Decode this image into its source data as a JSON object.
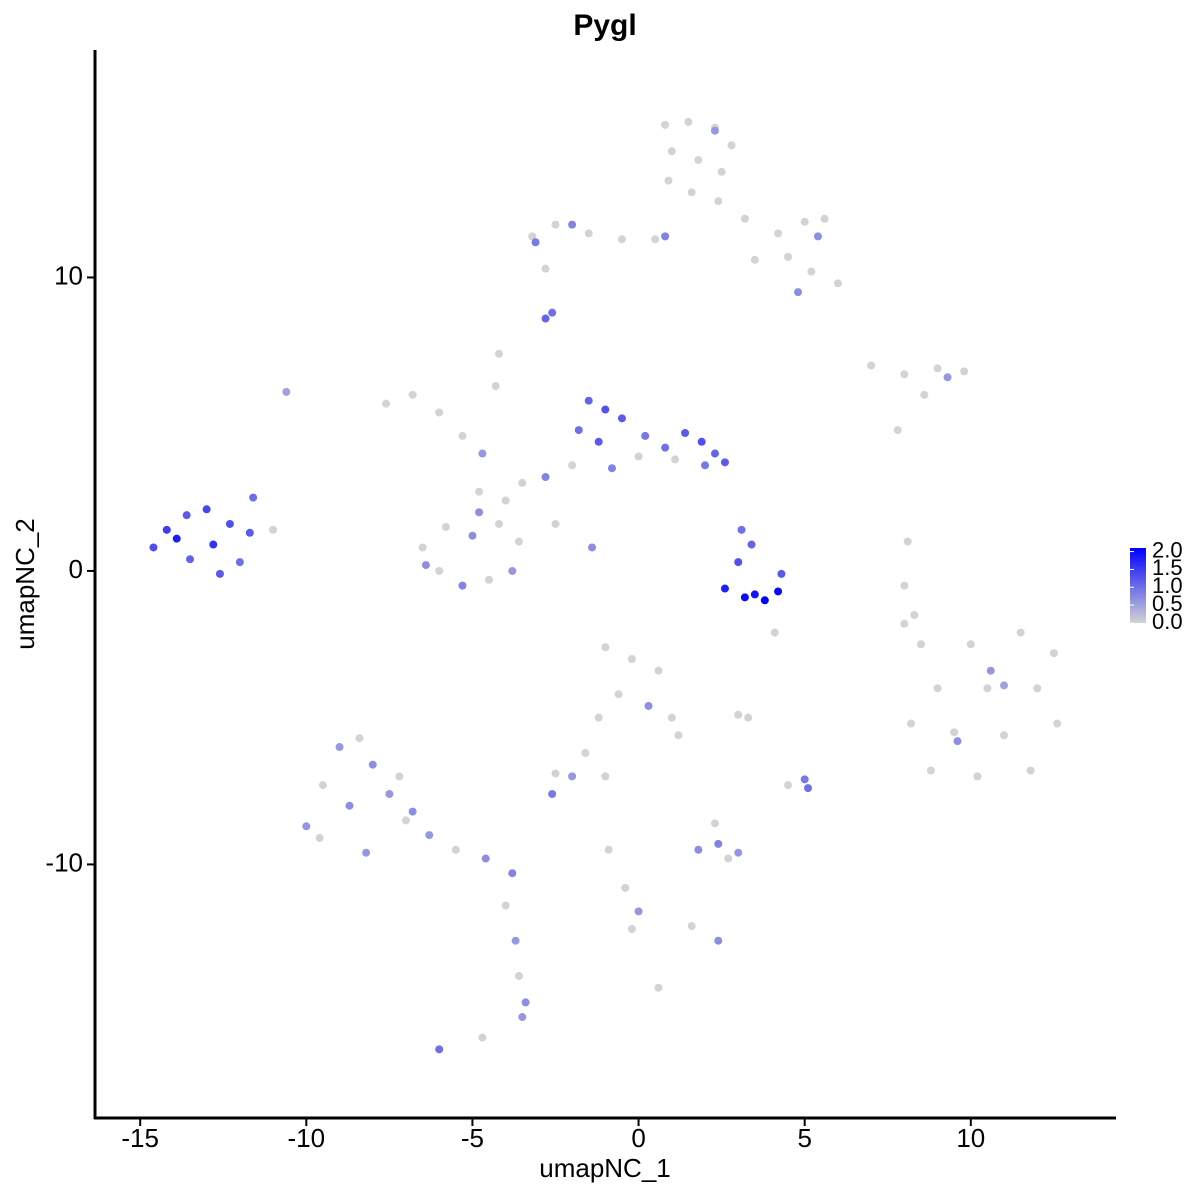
{
  "chart_data": {
    "type": "scatter",
    "title": "Pygl",
    "x_label": "umapNC_1",
    "y_label": "umapNC_2",
    "xlim": [
      -16.36,
      14.37
    ],
    "ylim": [
      -18.64,
      17.75
    ],
    "xticks": [
      -15,
      -10,
      -5,
      0,
      5,
      10
    ],
    "yticks": [
      -10,
      0,
      10
    ],
    "color_low": "#d3d3d3",
    "color_high": "#0000ff",
    "color_lim": [
      0,
      2.1
    ],
    "color_ticks": [
      {
        "value": 0,
        "label": "0.0"
      },
      {
        "value": 0.5,
        "label": "0.5"
      },
      {
        "value": 1,
        "label": "1.0"
      },
      {
        "value": 1.5,
        "label": "1.5"
      },
      {
        "value": 2,
        "label": "2.0"
      }
    ],
    "x": [
      0.8,
      1.5,
      2.3,
      2.8,
      1.0,
      1.8,
      2.5,
      0.9,
      1.6,
      2.4,
      2.3,
      3.2,
      4.2,
      5.0,
      5.6,
      4.5,
      5.2,
      6.0,
      4.8,
      3.5,
      0.5,
      -0.5,
      -1.5,
      -2.5,
      -3.2,
      -2.0,
      -3.1,
      0.8,
      5.4,
      -2.8,
      -2.8,
      -2.6,
      7.0,
      8.0,
      9.0,
      9.8,
      9.3,
      8.6,
      7.8,
      -1.5,
      -1.0,
      -0.5,
      -1.8,
      -1.2,
      0.2,
      0.8,
      1.4,
      1.9,
      2.3,
      2.6,
      2.0,
      1.1,
      0.0,
      -0.8,
      -2.0,
      -2.8,
      -3.5,
      -4.0,
      -4.8,
      -7.6,
      -6.8,
      -6.0,
      -5.3,
      -4.7,
      -4.2,
      -4.3,
      -6.5,
      -5.8,
      -5.0,
      -4.2,
      -3.6,
      -6.0,
      -5.3,
      -4.5,
      -3.8,
      -6.4,
      -4.8,
      -2.5,
      -1.4,
      -14.6,
      -14.2,
      -13.6,
      -13.0,
      -13.5,
      -12.8,
      -12.3,
      -13.9,
      -12.0,
      -12.6,
      -11.6,
      -11.7,
      -11.0,
      -10.6,
      2.6,
      3.2,
      3.8,
      4.2,
      3.5,
      3.0,
      3.4,
      3.1,
      4.3,
      4.1,
      8.1,
      8.0,
      8.3,
      8.0,
      8.5,
      10.0,
      11.5,
      12.5,
      9.0,
      10.5,
      12.0,
      8.2,
      9.5,
      11.0,
      12.6,
      8.8,
      10.2,
      11.8,
      10.6,
      9.6,
      11.0,
      -1.0,
      -0.2,
      0.6,
      -0.6,
      0.3,
      1.0,
      1.2,
      -1.2,
      -1.6,
      -2.5,
      -2.0,
      -2.6,
      -1.0,
      3.0,
      3.3,
      4.5,
      5.0,
      5.1,
      1.8,
      2.4,
      3.0,
      2.3,
      2.7,
      -0.9,
      -0.4,
      0.0,
      -0.2,
      1.6,
      2.4,
      0.6,
      -10.0,
      -9.0,
      -9.5,
      -8.4,
      -8.0,
      -7.2,
      -8.7,
      -9.6,
      -8.2,
      -7.0,
      -6.3,
      -5.5,
      -4.6,
      -3.8,
      -4.0,
      -3.7,
      -3.6,
      -3.4,
      -3.5,
      -6.0,
      -4.7,
      -7.5,
      -6.8
    ],
    "y": [
      15.2,
      15.3,
      15.1,
      14.5,
      14.3,
      14.0,
      13.6,
      13.3,
      12.9,
      12.6,
      15.0,
      12.0,
      11.5,
      11.9,
      12.0,
      10.7,
      10.2,
      9.8,
      9.5,
      10.6,
      11.3,
      11.3,
      11.5,
      11.8,
      11.4,
      11.8,
      11.2,
      11.4,
      11.4,
      10.3,
      8.6,
      8.8,
      7.0,
      6.7,
      6.9,
      6.8,
      6.6,
      6.0,
      4.8,
      5.8,
      5.5,
      5.2,
      4.8,
      4.4,
      4.6,
      4.2,
      4.7,
      4.4,
      4.0,
      3.7,
      3.6,
      3.8,
      3.9,
      3.5,
      3.6,
      3.2,
      3.0,
      2.4,
      2.0,
      5.7,
      6.0,
      5.4,
      4.6,
      4.0,
      7.4,
      6.3,
      0.8,
      1.5,
      1.2,
      1.6,
      1.0,
      0.0,
      -0.5,
      -0.3,
      0.0,
      0.2,
      2.7,
      1.6,
      0.8,
      0.8,
      1.4,
      1.9,
      2.1,
      0.4,
      0.9,
      1.6,
      1.1,
      0.3,
      -0.1,
      2.5,
      1.3,
      1.4,
      6.1,
      -0.6,
      -0.9,
      -1.0,
      -0.7,
      -0.8,
      0.3,
      0.9,
      1.4,
      -0.1,
      -2.1,
      1.0,
      -0.5,
      -1.5,
      -1.8,
      -2.5,
      -2.5,
      -2.1,
      -2.8,
      -4.0,
      -4.0,
      -4.0,
      -5.2,
      -5.5,
      -5.6,
      -5.2,
      -6.8,
      -7.0,
      -6.8,
      -3.4,
      -5.8,
      -3.9,
      -2.6,
      -3.0,
      -3.4,
      -4.2,
      -4.6,
      -5.0,
      -5.6,
      -5.0,
      -6.2,
      -6.9,
      -7.0,
      -7.6,
      -7.0,
      -4.9,
      -5.0,
      -7.3,
      -7.1,
      -7.4,
      -9.5,
      -9.3,
      -9.6,
      -8.6,
      -9.8,
      -9.5,
      -10.8,
      -11.6,
      -12.2,
      -12.1,
      -12.6,
      -14.2,
      -8.7,
      -6.0,
      -7.3,
      -5.7,
      -6.6,
      -7.0,
      -8.0,
      -9.1,
      -9.6,
      -8.5,
      -9.0,
      -9.5,
      -9.8,
      -10.3,
      -11.4,
      -12.6,
      -13.8,
      -14.7,
      -15.2,
      -16.3,
      -15.9,
      -7.6,
      -8.2
    ],
    "expression": [
      0,
      0,
      0,
      0,
      0,
      0,
      0,
      0,
      0,
      0,
      0.6,
      0,
      0,
      0,
      0,
      0,
      0,
      0,
      0.7,
      0,
      0,
      0,
      0,
      0,
      0,
      0.8,
      0.9,
      0.8,
      0.7,
      0,
      1.1,
      1.0,
      0,
      0,
      0,
      0,
      0.6,
      0,
      0,
      1.1,
      1.3,
      1.2,
      1.0,
      1.2,
      0.9,
      1.0,
      1.2,
      1.3,
      1.1,
      1.2,
      0.9,
      0,
      0,
      0.8,
      0,
      0.8,
      0,
      0,
      0.7,
      0,
      0,
      0,
      0,
      0.6,
      0,
      0,
      0,
      0,
      0.7,
      0,
      0,
      0,
      0.8,
      0,
      0.6,
      0.7,
      0,
      0,
      0.7,
      1.3,
      1.5,
      1.2,
      1.4,
      1.1,
      1.6,
      1.3,
      1.8,
      1.0,
      1.2,
      1.0,
      1.2,
      0,
      0.5,
      1.8,
      2.0,
      2.1,
      2.0,
      1.9,
      1.3,
      1.1,
      1.0,
      1.2,
      0,
      0,
      0,
      0,
      0,
      0,
      0,
      0,
      0,
      0,
      0,
      0,
      0,
      0,
      0,
      0,
      0,
      0,
      0,
      0.6,
      0.7,
      0.5,
      0,
      0,
      0,
      0,
      0.7,
      0,
      0,
      0,
      0,
      0,
      0.6,
      0.9,
      0,
      0,
      0,
      0,
      0.9,
      1.0,
      0.7,
      0.8,
      0.6,
      0,
      0,
      0,
      0,
      0.6,
      0,
      0,
      0.7,
      0,
      0.6,
      0.6,
      0,
      0,
      0.7,
      0,
      0.7,
      0,
      0.6,
      0,
      0.6,
      0,
      0.7,
      0.8,
      0,
      0.6,
      0,
      0.7,
      0.6,
      1.0,
      0,
      0.6,
      0.7
    ]
  }
}
